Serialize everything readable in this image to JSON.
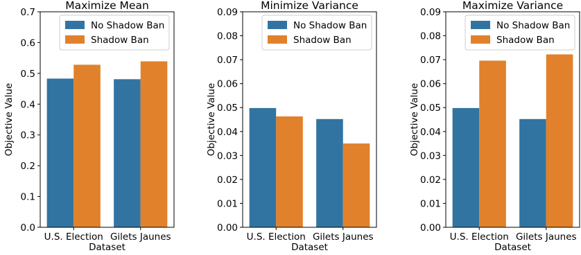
{
  "colors": {
    "no_shadow_ban": "#3274a1",
    "shadow_ban": "#e1812c"
  },
  "chart_data": [
    {
      "type": "bar",
      "title": "Maximize Mean",
      "xlabel": "Dataset",
      "ylabel": "Objective Value",
      "categories": [
        "U.S. Election",
        "Gilets Jaunes"
      ],
      "ylim": [
        0,
        0.7
      ],
      "yticks": [
        0.0,
        0.1,
        0.2,
        0.3,
        0.4,
        0.5,
        0.6,
        0.7
      ],
      "ytick_labels": [
        "0.0",
        "0.1",
        "0.2",
        "0.3",
        "0.4",
        "0.5",
        "0.6",
        "0.7"
      ],
      "legend_position": "top-right",
      "grid": false,
      "series": [
        {
          "name": "No Shadow Ban",
          "color": "#3274a1",
          "values": [
            0.483,
            0.481
          ]
        },
        {
          "name": "Shadow Ban",
          "color": "#e1812c",
          "values": [
            0.528,
            0.539
          ]
        }
      ]
    },
    {
      "type": "bar",
      "title": "Minimize Variance",
      "xlabel": "Dataset",
      "ylabel": "Objective Value",
      "categories": [
        "U.S. Election",
        "Gilets Jaunes"
      ],
      "ylim": [
        0,
        0.09
      ],
      "yticks": [
        0.0,
        0.01,
        0.02,
        0.03,
        0.04,
        0.05,
        0.06,
        0.07,
        0.08,
        0.09
      ],
      "ytick_labels": [
        "0.00",
        "0.01",
        "0.02",
        "0.03",
        "0.04",
        "0.05",
        "0.06",
        "0.07",
        "0.08",
        "0.09"
      ],
      "legend_position": "top-right",
      "grid": false,
      "series": [
        {
          "name": "No Shadow Ban",
          "color": "#3274a1",
          "values": [
            0.0498,
            0.0452
          ]
        },
        {
          "name": "Shadow Ban",
          "color": "#e1812c",
          "values": [
            0.0463,
            0.035
          ]
        }
      ]
    },
    {
      "type": "bar",
      "title": "Maximize Variance",
      "xlabel": "Dataset",
      "ylabel": "Objective Value",
      "categories": [
        "U.S. Election",
        "Gilets Jaunes"
      ],
      "ylim": [
        0,
        0.09
      ],
      "yticks": [
        0.0,
        0.01,
        0.02,
        0.03,
        0.04,
        0.05,
        0.06,
        0.07,
        0.08,
        0.09
      ],
      "ytick_labels": [
        "0.00",
        "0.01",
        "0.02",
        "0.03",
        "0.04",
        "0.05",
        "0.06",
        "0.07",
        "0.08",
        "0.09"
      ],
      "legend_position": "top-right",
      "grid": false,
      "series": [
        {
          "name": "No Shadow Ban",
          "color": "#3274a1",
          "values": [
            0.0498,
            0.0452
          ]
        },
        {
          "name": "Shadow Ban",
          "color": "#e1812c",
          "values": [
            0.0696,
            0.0722
          ]
        }
      ]
    }
  ]
}
